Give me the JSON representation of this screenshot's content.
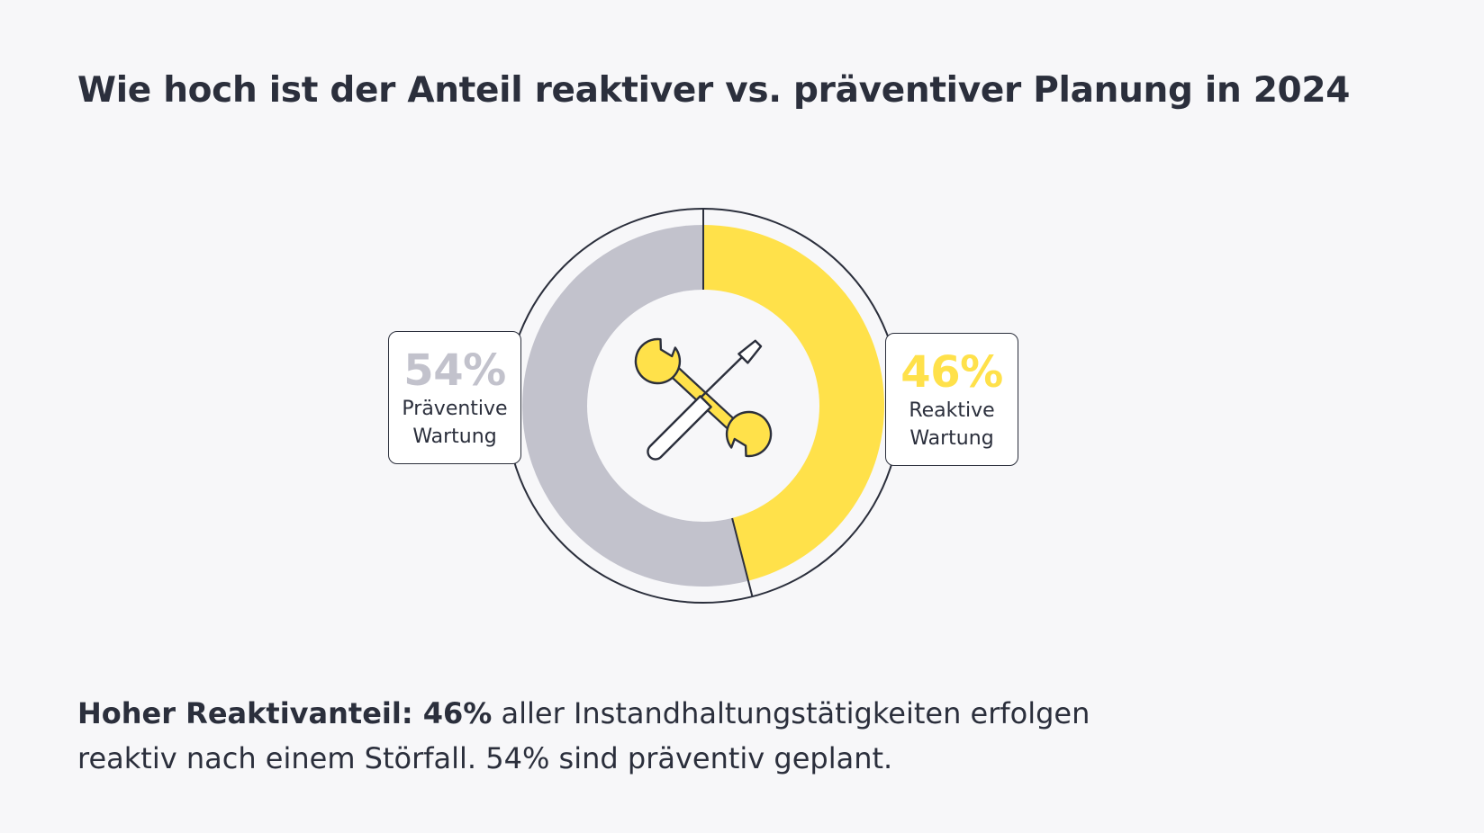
{
  "title": "Wie hoch ist der Anteil reaktiver vs. präventiver Planung in 2024",
  "chart_data": {
    "type": "pie",
    "variant": "donut",
    "title": "Wie hoch ist der Anteil reaktiver vs. präventiver Planung in 2024",
    "categories": [
      "Präventive Wartung",
      "Reaktive Wartung"
    ],
    "values": [
      54,
      46
    ],
    "unit": "%",
    "colors": {
      "praeventiv": "#c2c2cc",
      "reaktiv": "#ffe14a",
      "outline": "#2b2f3c",
      "inner": "#f7f7f9"
    },
    "labels": {
      "left": {
        "value_text": "54%",
        "line1": "Präventive",
        "line2": "Wartung"
      },
      "right": {
        "value_text": "46%",
        "line1": "Reaktive",
        "line2": "Wartung"
      }
    },
    "center_icon": "wrench-screwdriver-icon"
  },
  "caption": {
    "bold": "Hoher Reaktivanteil: 46%",
    "line1_rest": " aller Instandhaltungstätigkeiten erfolgen",
    "line2": "reaktiv nach einem Störfall. 54% sind präventiv geplant."
  }
}
